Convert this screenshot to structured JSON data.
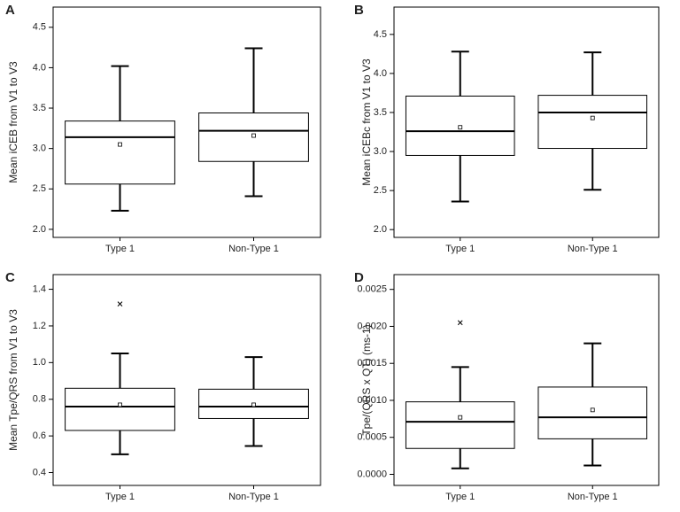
{
  "chart_data": [
    {
      "type": "box",
      "label": "A",
      "ylabel": "Mean iCEB from V1 to V3",
      "categories": [
        "Type 1",
        "Non-Type 1"
      ],
      "ylim": [
        1.9,
        4.75
      ],
      "yticks": [
        {
          "value": 2,
          "label": "2.0"
        },
        2.5,
        {
          "value": 3,
          "label": "3.0"
        },
        3.5,
        {
          "value": 4,
          "label": "4.0"
        },
        4.5
      ],
      "boxes": [
        {
          "whisker_low": 2.23,
          "q1": 2.56,
          "median": 3.14,
          "mean": 3.05,
          "q3": 3.34,
          "whisker_high": 4.02,
          "outliers": []
        },
        {
          "whisker_low": 2.41,
          "q1": 2.84,
          "median": 3.22,
          "mean": 3.16,
          "q3": 3.44,
          "whisker_high": 4.24,
          "outliers": []
        }
      ]
    },
    {
      "type": "box",
      "label": "B",
      "ylabel": "Mean iCEBc from V1 to V3",
      "categories": [
        "Type 1",
        "Non-Type 1"
      ],
      "ylim": [
        1.9,
        4.85
      ],
      "yticks": [
        {
          "value": 2,
          "label": "2.0"
        },
        2.5,
        {
          "value": 3,
          "label": "3.0"
        },
        3.5,
        {
          "value": 4,
          "label": "4.0"
        },
        4.5
      ],
      "boxes": [
        {
          "whisker_low": 2.36,
          "q1": 2.95,
          "median": 3.26,
          "mean": 3.31,
          "q3": 3.71,
          "whisker_high": 4.28,
          "outliers": []
        },
        {
          "whisker_low": 2.51,
          "q1": 3.04,
          "median": 3.5,
          "mean": 3.43,
          "q3": 3.72,
          "whisker_high": 4.27,
          "outliers": []
        }
      ]
    },
    {
      "type": "box",
      "label": "C",
      "ylabel": "Mean Tpe/QRS from V1 to V3",
      "categories": [
        "Type 1",
        "Non-Type 1"
      ],
      "ylim": [
        0.33,
        1.48
      ],
      "yticks": [
        0.4,
        0.6,
        0.8,
        {
          "value": 1,
          "label": "1.0"
        },
        1.2,
        1.4
      ],
      "boxes": [
        {
          "whisker_low": 0.5,
          "q1": 0.63,
          "median": 0.76,
          "mean": 0.77,
          "q3": 0.86,
          "whisker_high": 1.05,
          "outliers": [
            1.32
          ]
        },
        {
          "whisker_low": 0.545,
          "q1": 0.695,
          "median": 0.76,
          "mean": 0.77,
          "q3": 0.855,
          "whisker_high": 1.03,
          "outliers": []
        }
      ]
    },
    {
      "type": "box",
      "label": "D",
      "ylabel": "Tpe/(QRS x QT) (ms-1)",
      "categories": [
        "Type 1",
        "Non-Type 1"
      ],
      "ylim": [
        -0.00015,
        0.0027
      ],
      "yticks": [
        {
          "value": 0,
          "label": "0.0000"
        },
        {
          "value": 0.0005,
          "label": "0.0005"
        },
        {
          "value": 0.001,
          "label": "0.0010"
        },
        {
          "value": 0.0015,
          "label": "0.0015"
        },
        {
          "value": 0.002,
          "label": "0.0020"
        },
        {
          "value": 0.0025,
          "label": "0.0025"
        }
      ],
      "boxes": [
        {
          "whisker_low": 8e-05,
          "q1": 0.00035,
          "median": 0.00071,
          "mean": 0.00077,
          "q3": 0.00098,
          "whisker_high": 0.00145,
          "outliers": [
            0.00205
          ]
        },
        {
          "whisker_low": 0.00012,
          "q1": 0.00048,
          "median": 0.00077,
          "mean": 0.00087,
          "q3": 0.00118,
          "whisker_high": 0.00177,
          "outliers": []
        }
      ]
    }
  ]
}
